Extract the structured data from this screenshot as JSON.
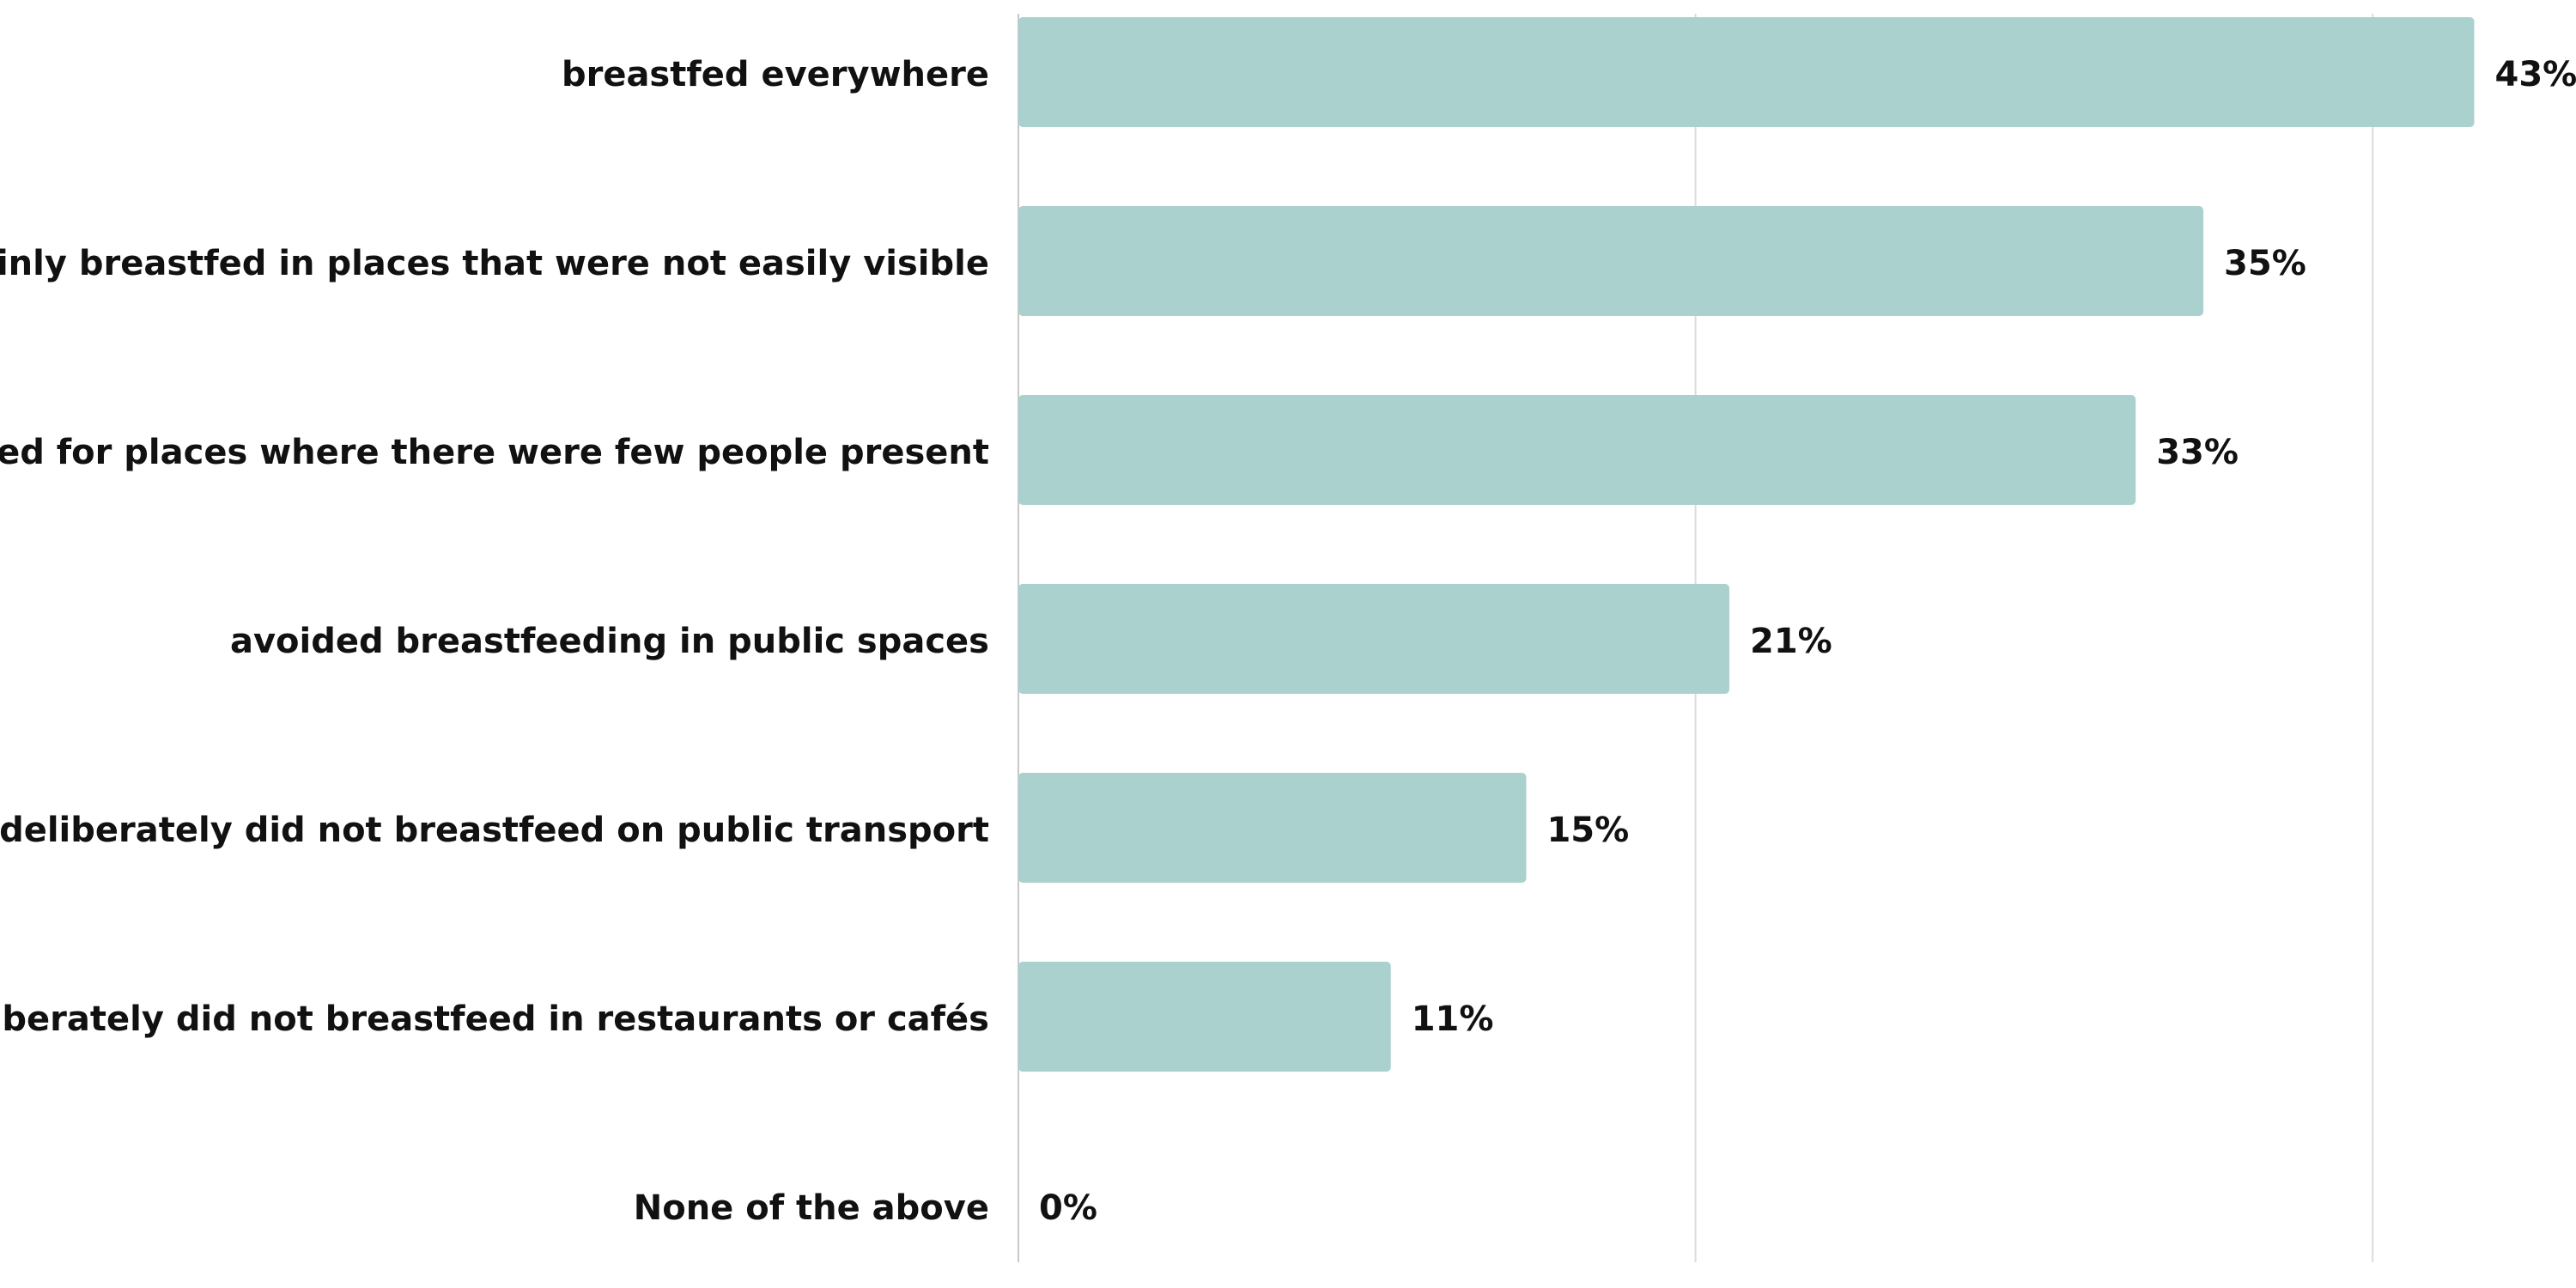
{
  "chart_data": {
    "type": "bar",
    "orientation": "horizontal",
    "categories": [
      "breastfed everywhere",
      "mainly breastfed in places that were not easily visible",
      "looked for places where there were few people present",
      "avoided breastfeeding in public spaces",
      "deliberately did not breastfeed on public transport",
      "deliberately did not breastfeed in restaurants or cafés",
      "None of the above"
    ],
    "values": [
      43,
      35,
      33,
      21,
      15,
      11,
      0
    ],
    "value_labels": [
      "43%",
      "35%",
      "33%",
      "21%",
      "15%",
      "11%",
      "0%"
    ],
    "unit": "%",
    "xlim": [
      0,
      45
    ],
    "grid": true,
    "gridline_values": [
      0,
      20,
      40
    ],
    "bar_color": "#abd1ce",
    "title": "",
    "xlabel": "",
    "ylabel": ""
  }
}
